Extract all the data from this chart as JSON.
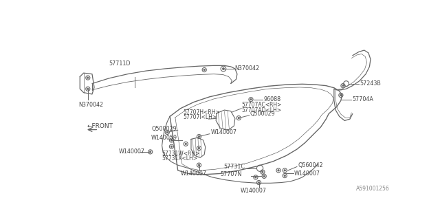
{
  "bg_color": "#ffffff",
  "lc": "#666666",
  "tc": "#444444",
  "fig_w": 6.4,
  "fig_h": 3.2,
  "dpi": 100,
  "watermark": "A591001256",
  "xlim": [
    0,
    640
  ],
  "ylim": [
    0,
    320
  ]
}
